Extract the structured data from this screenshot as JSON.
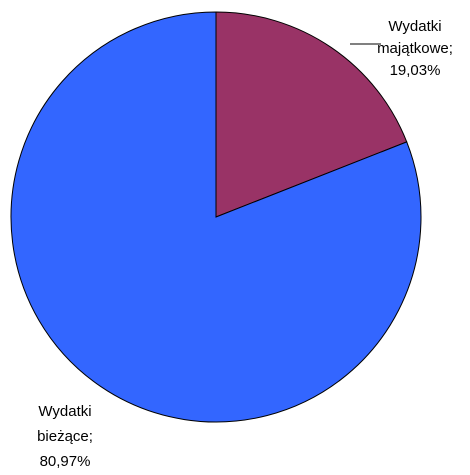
{
  "chart_data": {
    "type": "pie",
    "categories": [
      "Wydatki majątkowe",
      "Wydatki bieżące"
    ],
    "values": [
      19.03,
      80.97
    ],
    "value_labels": [
      "19,03%",
      "80,97%"
    ],
    "label_separator": ";",
    "colors": [
      "#993366",
      "#3366ff"
    ]
  }
}
